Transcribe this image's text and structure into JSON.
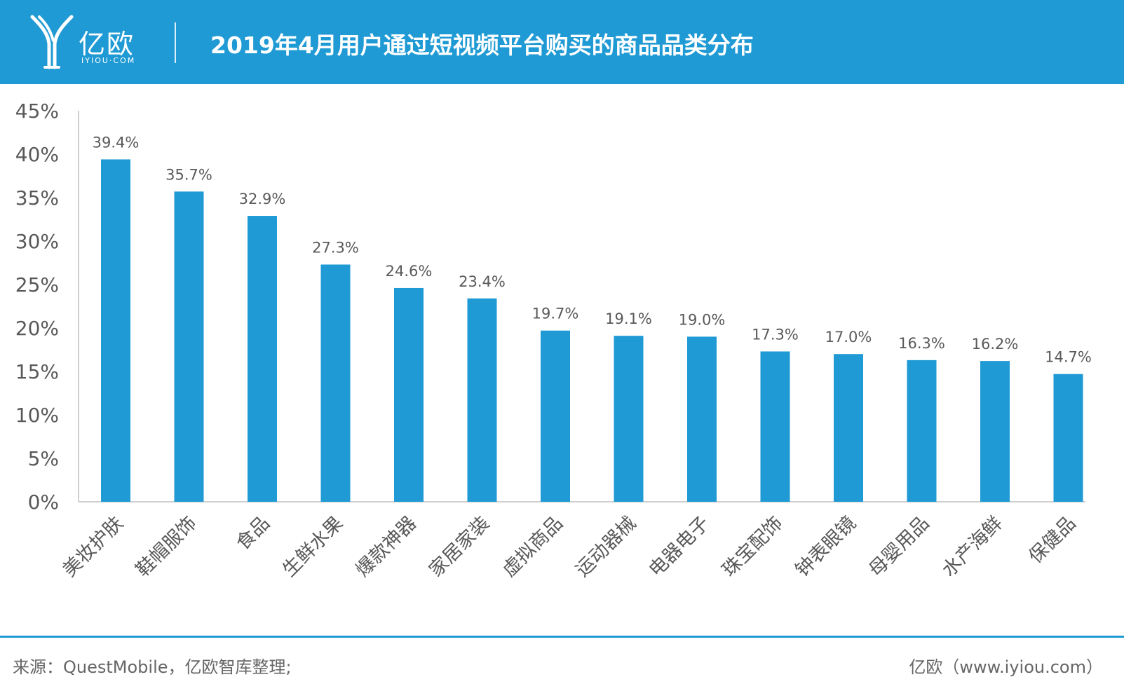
{
  "header": {
    "logo_text": "亿欧",
    "logo_sub": "IYIOU·COM",
    "title": "2019年4月用户通过短视频平台购买的商品品类分布"
  },
  "chart_data": {
    "type": "bar",
    "categories": [
      "美妆护肤",
      "鞋帽服饰",
      "食品",
      "生鲜水果",
      "爆款神器",
      "家居家装",
      "虚拟商品",
      "运动器械",
      "电器电子",
      "珠宝配饰",
      "钟表眼镜",
      "母婴用品",
      "水产海鲜",
      "保健品"
    ],
    "values": [
      39.4,
      35.7,
      32.9,
      27.3,
      24.6,
      23.4,
      19.7,
      19.1,
      19.0,
      17.3,
      17.0,
      16.3,
      16.2,
      14.7
    ],
    "value_labels": [
      "39.4%",
      "35.7%",
      "32.9%",
      "27.3%",
      "24.6%",
      "23.4%",
      "19.7%",
      "19.1%",
      "19.0%",
      "17.3%",
      "17.0%",
      "16.3%",
      "16.2%",
      "14.7%"
    ],
    "yticks": [
      "0%",
      "5%",
      "10%",
      "15%",
      "20%",
      "25%",
      "30%",
      "35%",
      "40%",
      "45%"
    ],
    "ylim": [
      0,
      45
    ],
    "title": "",
    "xlabel": "",
    "ylabel": "",
    "grid": false,
    "bar_color": "#1f9ad4"
  },
  "footer": {
    "source": "来源：QuestMobile，亿欧智库整理;",
    "credit": "亿欧（www.iyiou.com）"
  }
}
